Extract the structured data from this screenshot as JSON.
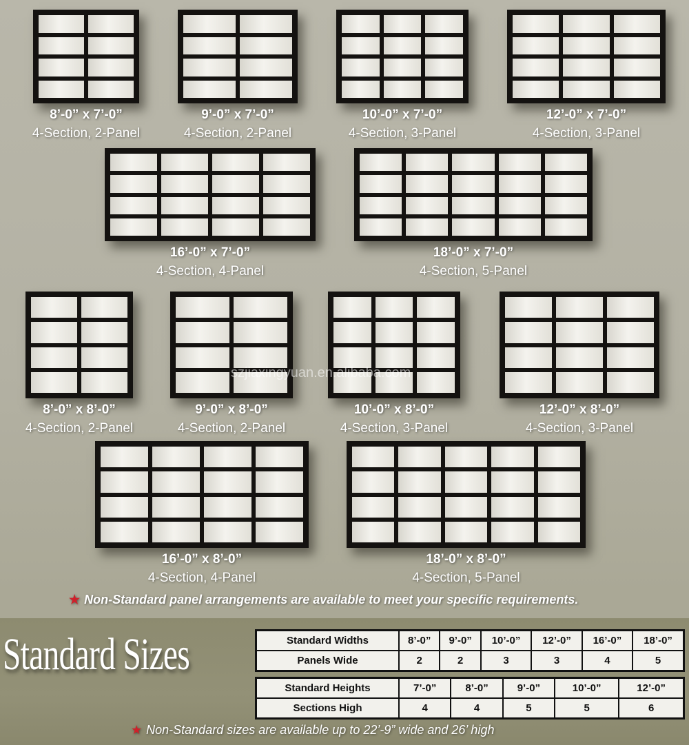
{
  "doors": [
    {
      "size": "8’-0” x 7’-0”",
      "desc": "4-Section, 2-Panel",
      "sections": 4,
      "panels": 2
    },
    {
      "size": "9’-0” x 7’-0”",
      "desc": "4-Section, 2-Panel",
      "sections": 4,
      "panels": 2
    },
    {
      "size": "10’-0” x 7’-0”",
      "desc": "4-Section, 3-Panel",
      "sections": 4,
      "panels": 3
    },
    {
      "size": "12’-0” x 7’-0”",
      "desc": "4-Section, 3-Panel",
      "sections": 4,
      "panels": 3
    },
    {
      "size": "16’-0” x 7’-0”",
      "desc": "4-Section, 4-Panel",
      "sections": 4,
      "panels": 4
    },
    {
      "size": "18’-0” x 7’-0”",
      "desc": "4-Section, 5-Panel",
      "sections": 4,
      "panels": 5
    },
    {
      "size": "8’-0” x 8’-0”",
      "desc": "4-Section, 2-Panel",
      "sections": 4,
      "panels": 2
    },
    {
      "size": "9’-0” x 8’-0”",
      "desc": "4-Section, 2-Panel",
      "sections": 4,
      "panels": 2
    },
    {
      "size": "10’-0” x 8’-0”",
      "desc": "4-Section, 3-Panel",
      "sections": 4,
      "panels": 3
    },
    {
      "size": "12’-0” x 8’-0”",
      "desc": "4-Section, 3-Panel",
      "sections": 4,
      "panels": 3
    },
    {
      "size": "16’-0” x 8’-0”",
      "desc": "4-Section, 4-Panel",
      "sections": 4,
      "panels": 4
    },
    {
      "size": "18’-0” x 8’-0”",
      "desc": "4-Section, 5-Panel",
      "sections": 4,
      "panels": 5
    }
  ],
  "note_panels": "Non-Standard panel arrangements are available to meet your specific requirements.",
  "title": "Standard Sizes",
  "widths_table": {
    "header": "Standard Widths",
    "values": [
      "8’-0”",
      "9’-0”",
      "10’-0”",
      "12’-0”",
      "16’-0”",
      "18’-0”"
    ],
    "row_label": "Panels Wide",
    "counts": [
      "2",
      "2",
      "3",
      "3",
      "4",
      "5"
    ]
  },
  "heights_table": {
    "header": "Standard Heights",
    "values": [
      "7’-0”",
      "8’-0”",
      "9’-0”",
      "10’-0”",
      "12’-0”"
    ],
    "row_label": "Sections High",
    "counts": [
      "4",
      "4",
      "5",
      "5",
      "6"
    ]
  },
  "note_sizes": "Non-Standard sizes are available up to 22’-9” wide and 26’ high",
  "watermark": "szjiaxingyuan.en.alibaba.com",
  "colors": {
    "star": "#d0202a",
    "frame": "#141210",
    "band": "#8d8b70"
  }
}
